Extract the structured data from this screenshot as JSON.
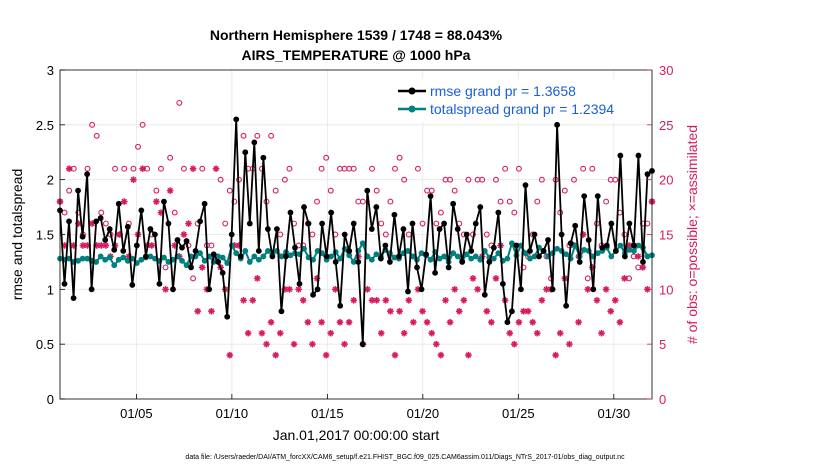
{
  "chart_data": {
    "type": "line",
    "title_line1": "Northern Hemisphere 1539 / 1748 = 88.043%",
    "title_line2": "AIRS_TEMPERATURE @ 1000 hPa",
    "xlabel": "Jan.01,2017 00:00:00 start",
    "ylabel": "rmse and totalspread",
    "y2label": "# of obs: o=possible; ×=assimilated",
    "footnote": "data file: /Users/raeder/DAI/ATM_forcXX/CAM6_setup/f.e21.FHIST_BGC.f09_025.CAM6assim.011/Diags_NTrS_2017-01/obs_diag_output.nc",
    "xlim": [
      1,
      32
    ],
    "ylim": [
      0,
      3
    ],
    "y2lim": [
      0,
      30
    ],
    "xticks": [
      5,
      10,
      15,
      20,
      25,
      30
    ],
    "xtick_labels": [
      "01/05",
      "01/10",
      "01/15",
      "01/20",
      "01/25",
      "01/30"
    ],
    "yticks": [
      0,
      0.5,
      1,
      1.5,
      2,
      2.5,
      3
    ],
    "ytick_labels": [
      "0",
      "0.5",
      "1",
      "1.5",
      "2",
      "2.5",
      "3"
    ],
    "y2ticks": [
      0,
      5,
      10,
      15,
      20,
      25,
      30
    ],
    "y2tick_labels": [
      "0",
      "5",
      "10",
      "15",
      "20",
      "25",
      "30"
    ],
    "legend": [
      {
        "label": "rmse grand pr = 1.3658",
        "color": "#000000"
      },
      {
        "label": "totalspread grand pr = 1.2394",
        "color": "#008080"
      }
    ],
    "colors": {
      "rmse": "#000000",
      "spread": "#008080",
      "obs": "#d81b60"
    },
    "series": [
      {
        "name": "rmse",
        "values": [
          1.72,
          1.05,
          1.62,
          0.92,
          1.9,
          1.48,
          2.05,
          1.0,
          1.62,
          1.65,
          1.45,
          1.55,
          1.36,
          1.78,
          1.35,
          1.57,
          1.04,
          1.4,
          1.72,
          1.3,
          1.55,
          1.5,
          1.05,
          1.8,
          1.6,
          1.0,
          1.45,
          1.38,
          1.44,
          1.2,
          1.35,
          1.62,
          1.78,
          1.0,
          1.32,
          1.25,
          1.15,
          0.75,
          1.5,
          2.55,
          1.3,
          2.25,
          1.6,
          2.34,
          1.35,
          2.2,
          1.55,
          1.3,
          1.55,
          0.8,
          1.3,
          1.7,
          1.38,
          1.05,
          1.75,
          1.6,
          0.95,
          1.0,
          1.6,
          1.3,
          1.7,
          1.25,
          0.85,
          1.5,
          1.35,
          1.6,
          1.25,
          0.5,
          1.9,
          1.55,
          1.75,
          1.28,
          1.4,
          1.25,
          1.68,
          1.3,
          1.55,
          0.98,
          1.6,
          1.2,
          1.0,
          1.32,
          1.85,
          1.15,
          1.55,
          1.6,
          1.2,
          1.78,
          1.55,
          1.25,
          1.5,
          1.35,
          1.6,
          1.75,
          0.95,
          1.25,
          1.38,
          1.7,
          1.05,
          0.7,
          0.8,
          1.4,
          1.0,
          1.95,
          1.35,
          1.5,
          1.3,
          1.35,
          1.45,
          1.0,
          2.5,
          1.5,
          0.85,
          1.42,
          1.58,
          1.25,
          1.85,
          1.45,
          1.0,
          1.85,
          1.38,
          1.4,
          1.6,
          1.35,
          2.22,
          1.3,
          1.6,
          1.4,
          2.22,
          1.25,
          2.05,
          2.08
        ]
      },
      {
        "name": "totalspread",
        "values": [
          1.28,
          1.27,
          1.28,
          1.25,
          1.26,
          1.28,
          1.28,
          1.26,
          1.25,
          1.3,
          1.27,
          1.29,
          1.22,
          1.27,
          1.29,
          1.26,
          1.28,
          1.24,
          1.27,
          1.29,
          1.3,
          1.28,
          1.26,
          1.29,
          1.25,
          1.27,
          1.3,
          1.26,
          1.22,
          1.3,
          1.3,
          1.33,
          1.26,
          1.3,
          1.25,
          1.3,
          1.29,
          1.24,
          1.4,
          1.33,
          1.28,
          1.35,
          1.25,
          1.3,
          1.27,
          1.3,
          1.35,
          1.32,
          1.35,
          1.3,
          1.34,
          1.31,
          1.33,
          1.32,
          1.37,
          1.29,
          1.27,
          1.35,
          1.33,
          1.27,
          1.3,
          1.34,
          1.28,
          1.37,
          1.31,
          1.25,
          1.35,
          1.42,
          1.3,
          1.27,
          1.32,
          1.3,
          1.36,
          1.33,
          1.29,
          1.28,
          1.33,
          1.35,
          1.3,
          1.27,
          1.33,
          1.31,
          1.27,
          1.34,
          1.28,
          1.3,
          1.25,
          1.33,
          1.3,
          1.26,
          1.32,
          1.28,
          1.3,
          1.27,
          1.35,
          1.29,
          1.28,
          1.33,
          1.26,
          1.28,
          1.42,
          1.31,
          1.4,
          1.33,
          1.28,
          1.3,
          1.38,
          1.35,
          1.3,
          1.33,
          1.37,
          1.35,
          1.32,
          1.28,
          1.4,
          1.3,
          1.36,
          1.35,
          1.3,
          1.33,
          1.35,
          1.38,
          1.3,
          1.35,
          1.4,
          1.33,
          1.36,
          1.35,
          1.4,
          1.38,
          1.3,
          1.31
        ]
      },
      {
        "name": "obs_possible",
        "values": [
          18,
          17,
          19,
          21,
          17,
          15,
          21,
          25,
          24,
          17,
          16,
          15,
          21,
          15,
          21,
          16,
          21,
          23,
          25,
          21,
          15,
          19,
          21,
          12,
          22,
          17,
          27,
          21,
          14,
          11,
          16,
          21,
          14,
          14,
          13,
          20,
          16,
          19,
          18,
          20,
          24,
          21,
          21,
          24,
          21,
          18,
          24,
          19,
          15,
          20,
          21,
          16,
          14,
          14,
          16,
          15,
          18,
          21,
          22,
          19,
          15,
          21,
          21,
          21,
          21,
          18,
          18,
          13,
          21,
          19,
          16,
          15,
          18,
          21,
          22,
          20,
          15,
          13,
          21,
          16,
          19,
          19,
          16,
          17,
          20,
          20,
          19,
          16,
          15,
          20,
          15,
          20,
          20,
          15,
          14,
          20,
          18,
          21,
          18,
          17,
          21,
          12,
          13,
          15,
          18,
          20,
          13,
          11,
          20,
          17,
          19,
          14,
          20,
          13,
          21,
          11,
          21,
          16,
          14,
          18,
          20,
          20,
          17,
          15,
          11,
          13,
          12,
          16,
          16,
          18
        ]
      },
      {
        "name": "obs_assimilated",
        "values": [
          18,
          14,
          21,
          14,
          16,
          14,
          14,
          16,
          14,
          14,
          14,
          13,
          14,
          15,
          18,
          13,
          20,
          15,
          21,
          14,
          14,
          18,
          17,
          10,
          19,
          14,
          13,
          15,
          16,
          21,
          8,
          12,
          10,
          8,
          21,
          12,
          10,
          4,
          14,
          14,
          9,
          6,
          9,
          11,
          6,
          5,
          7,
          4,
          6,
          10,
          10,
          5,
          10,
          9,
          7,
          5,
          11,
          7,
          4,
          6,
          10,
          7,
          5,
          7,
          9,
          13,
          5,
          10,
          9,
          9,
          6,
          9,
          8,
          4,
          8,
          6,
          9,
          7,
          10,
          8,
          7,
          6,
          5,
          4,
          9,
          7,
          10,
          8,
          9,
          4,
          11,
          10,
          13,
          8,
          7,
          11,
          14,
          9,
          6,
          5,
          7,
          8,
          8,
          7,
          6,
          9,
          10,
          10,
          4,
          6,
          11,
          5,
          14,
          7,
          15,
          10,
          12,
          9,
          6,
          10,
          8,
          9,
          7,
          11,
          14,
          14,
          13,
          12,
          10,
          18
        ]
      }
    ]
  }
}
